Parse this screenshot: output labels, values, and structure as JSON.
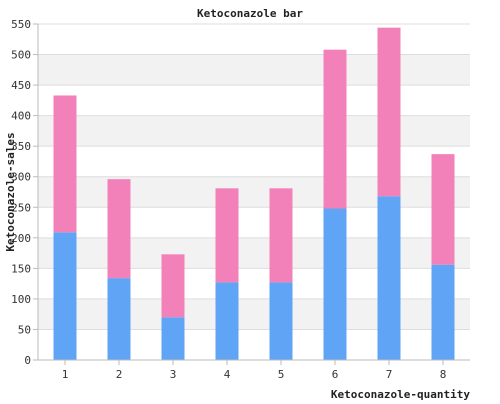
{
  "chart_data": {
    "type": "bar",
    "stacked": true,
    "title": "Ketoconazole bar",
    "xlabel": "Ketoconazole-quantity",
    "ylabel": "Ketoconazole-sales",
    "categories": [
      "1",
      "2",
      "3",
      "4",
      "5",
      "6",
      "7",
      "8"
    ],
    "ylim": [
      0,
      550
    ],
    "yticks": [
      0,
      50,
      100,
      150,
      200,
      250,
      300,
      350,
      400,
      450,
      500,
      550
    ],
    "grid": true,
    "legend": "none",
    "series": [
      {
        "values": [
          209,
          134,
          70,
          127,
          127,
          248,
          268,
          156
        ],
        "color": "#60a5f5"
      },
      {
        "values": [
          224,
          162,
          103,
          154,
          154,
          260,
          276,
          181
        ],
        "color": "#f281b9"
      }
    ],
    "colors": {
      "band": "#f2f2f2",
      "gridline": "#dddddd",
      "axis": "#bbbbbb"
    }
  }
}
